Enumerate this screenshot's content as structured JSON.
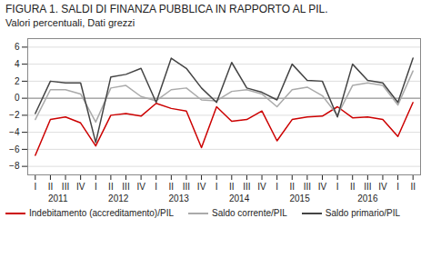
{
  "chart_data": {
    "type": "line",
    "title": "FIGURA 1. SALDI DI FINANZA PUBBLICA IN RAPPORTO AL PIL.",
    "subtitle": "Valori percentuali, Dati grezzi",
    "categories": [
      "I",
      "II",
      "III",
      "IV",
      "I",
      "II",
      "III",
      "IV",
      "I",
      "II",
      "III",
      "IV",
      "I",
      "II",
      "III",
      "IV",
      "I",
      "II",
      "III",
      "IV",
      "I",
      "II",
      "III",
      "IV",
      "I",
      "II"
    ],
    "series": [
      {
        "name": "Indebitamento (accreditamento)/PIL",
        "color": "#cc0000",
        "values": [
          -6.7,
          -2.5,
          -2.2,
          -2.9,
          -5.6,
          -2.0,
          -1.8,
          -2.1,
          -0.6,
          -1.2,
          -1.5,
          -5.8,
          -1.0,
          -2.7,
          -2.5,
          -1.5,
          -5.0,
          -2.5,
          -2.2,
          -2.1,
          -1.0,
          -2.3,
          -2.2,
          -2.5,
          -4.5,
          -0.5
        ]
      },
      {
        "name": "Saldo corrente/PIL",
        "color": "#aaaaaa",
        "values": [
          -2.5,
          1.0,
          1.0,
          0.5,
          -2.8,
          1.2,
          1.5,
          0.2,
          -0.3,
          1.0,
          1.2,
          -0.2,
          -0.3,
          0.8,
          1.0,
          0.5,
          -1.0,
          1.0,
          1.3,
          0.3,
          -2.0,
          1.5,
          1.8,
          1.5,
          -0.8,
          3.2
        ]
      },
      {
        "name": "Saldo primario/PIL",
        "color": "#444444",
        "values": [
          -1.8,
          2.0,
          1.8,
          1.8,
          -5.2,
          2.5,
          2.8,
          3.5,
          -0.5,
          4.7,
          3.5,
          1.2,
          -0.5,
          4.2,
          1.2,
          0.7,
          -0.2,
          4.0,
          2.1,
          2.0,
          -2.2,
          4.0,
          2.1,
          1.8,
          -0.5,
          4.7
        ]
      }
    ],
    "annotations": [
      {
        "text": "2011",
        "x": 1.5
      },
      {
        "text": "2012",
        "x": 5.5
      },
      {
        "text": "2013",
        "x": 9.5
      },
      {
        "text": "2014",
        "x": 13.5
      },
      {
        "text": "2015",
        "x": 17.5
      },
      {
        "text": "2016",
        "x": 22.0
      }
    ],
    "ylim": [
      -9,
      7
    ],
    "yticks": [
      -8,
      -6,
      -4,
      -2,
      0,
      2,
      4,
      6
    ],
    "grid": true
  }
}
